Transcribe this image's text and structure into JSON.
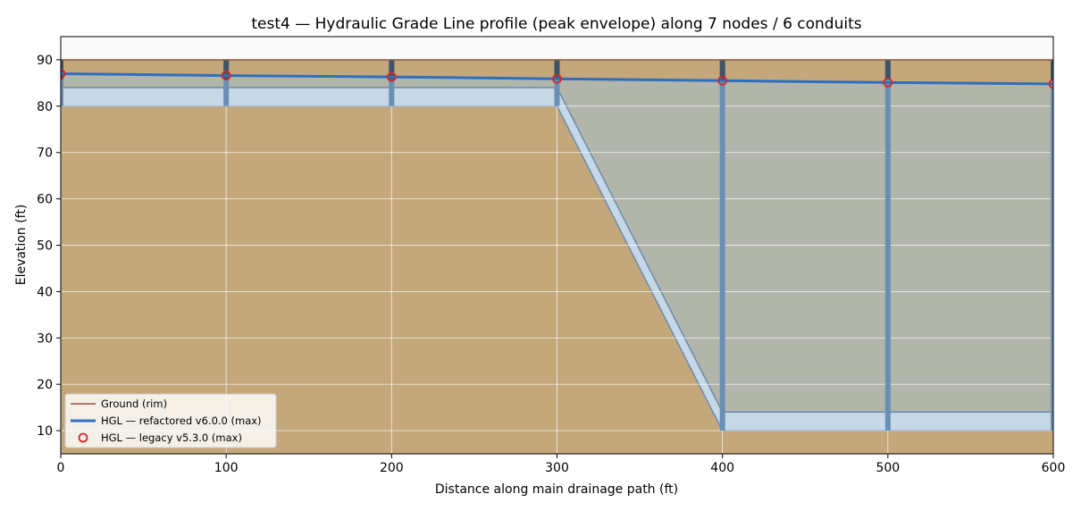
{
  "chart_data": {
    "type": "line",
    "title": "test4 — Hydraulic Grade Line profile (peak envelope) along 7 nodes / 6 conduits",
    "xlabel": "Distance along main drainage path (ft)",
    "ylabel": "Elevation (ft)",
    "xlim": [
      0,
      600
    ],
    "ylim": [
      5,
      95
    ],
    "xticks": [
      "0",
      "100",
      "200",
      "300",
      "400",
      "500",
      "600"
    ],
    "yticks": [
      "10",
      "20",
      "30",
      "40",
      "50",
      "60",
      "70",
      "80",
      "90"
    ],
    "grid": true,
    "legend_position": "lower-left",
    "nodes": {
      "x": [
        0,
        100,
        200,
        300,
        400,
        500,
        600
      ],
      "rim": [
        90,
        90,
        90,
        90,
        90,
        90,
        90
      ],
      "invert": [
        80,
        80,
        80,
        80,
        10,
        10,
        10
      ]
    },
    "conduit_height": 4,
    "series": [
      {
        "name": "Ground (rim)",
        "type": "line",
        "color": "#8c5a3c",
        "x": [
          0,
          100,
          200,
          300,
          400,
          500,
          600
        ],
        "y": [
          90,
          90,
          90,
          90,
          90,
          90,
          90
        ]
      },
      {
        "name": "HGL — refactored v6.0.0 (max)",
        "type": "line",
        "color": "#2f6fbf",
        "x": [
          0,
          100,
          200,
          300,
          400,
          500,
          600
        ],
        "y": [
          87.0,
          86.6,
          86.3,
          85.9,
          85.5,
          85.1,
          84.8
        ]
      },
      {
        "name": "HGL — legacy v5.3.0 (max)",
        "type": "scatter",
        "color": "#d62728",
        "x": [
          0,
          100,
          200,
          300,
          400,
          500,
          600
        ],
        "y": [
          87.0,
          86.6,
          86.3,
          85.9,
          85.5,
          85.1,
          84.8
        ]
      }
    ],
    "colors": {
      "soil": "#c4a77a",
      "water": "#b2b5aa",
      "pipe": "#c6d7e6",
      "pipe_edge": "#6a8bad",
      "node_shaft": "#6a8fb5",
      "node_top": "#3d5467",
      "sky": "#fafafa",
      "grid": "#ffffff"
    }
  }
}
